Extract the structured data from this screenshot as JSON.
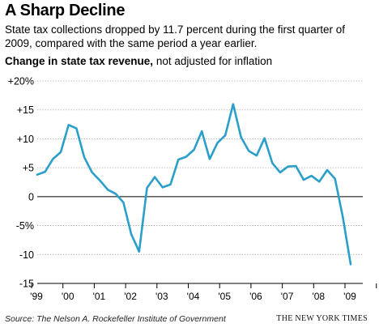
{
  "header": {
    "title": "A Sharp Decline",
    "subtitle": "State tax collections dropped by 11.7 percent during the first quarter of 2009, compared with the same period a year earlier."
  },
  "chart_label": {
    "bold": "Change in state tax revenue,",
    "rest": " not adjusted for inflation"
  },
  "footer": {
    "source": "Source: The Nelson A. Rockefeller Institute of Government",
    "credit": "THE NEW YORK TIMES"
  },
  "chart_data": {
    "type": "line",
    "title": "Change in state tax revenue, not adjusted for inflation",
    "ylim": [
      -15,
      20
    ],
    "grid": true,
    "color": "#2a9fc9",
    "y_ticks": [
      "+20%",
      "+15",
      "+10",
      "+5",
      "0",
      "-5%",
      "-10",
      "-15"
    ],
    "x_tick_labels": [
      "'99",
      "'00",
      "'01",
      "'02",
      "'03",
      "'04",
      "'05",
      "'06",
      "'07",
      "'08",
      "'09"
    ],
    "series": [
      {
        "x": [
          "1999Q1",
          "1999Q2",
          "1999Q3",
          "1999Q4",
          "2000Q1",
          "2000Q2",
          "2000Q3",
          "2000Q4",
          "2001Q1",
          "2001Q2",
          "2001Q3",
          "2001Q4",
          "2002Q1",
          "2002Q2",
          "2002Q3",
          "2002Q4",
          "2003Q1",
          "2003Q2",
          "2003Q3",
          "2003Q4",
          "2004Q1",
          "2004Q2",
          "2004Q3",
          "2004Q4",
          "2005Q1",
          "2005Q2",
          "2005Q3",
          "2005Q4",
          "2006Q1",
          "2006Q2",
          "2006Q3",
          "2006Q4",
          "2007Q1",
          "2007Q2",
          "2007Q3",
          "2007Q4",
          "2008Q1",
          "2008Q2",
          "2008Q3",
          "2008Q4",
          "2009Q1"
        ],
        "values": [
          3.8,
          4.3,
          6.5,
          7.7,
          12.4,
          11.8,
          6.8,
          4.2,
          2.8,
          1.2,
          0.5,
          -1.0,
          -6.5,
          -9.5,
          1.5,
          3.4,
          1.6,
          2.1,
          6.4,
          6.9,
          8.1,
          11.3,
          6.5,
          9.3,
          10.6,
          16.0,
          10.3,
          7.9,
          7.1,
          10.1,
          5.8,
          4.2,
          5.2,
          5.3,
          2.9,
          3.6,
          2.6,
          4.6,
          3.1,
          -3.5,
          -11.7
        ]
      }
    ]
  }
}
